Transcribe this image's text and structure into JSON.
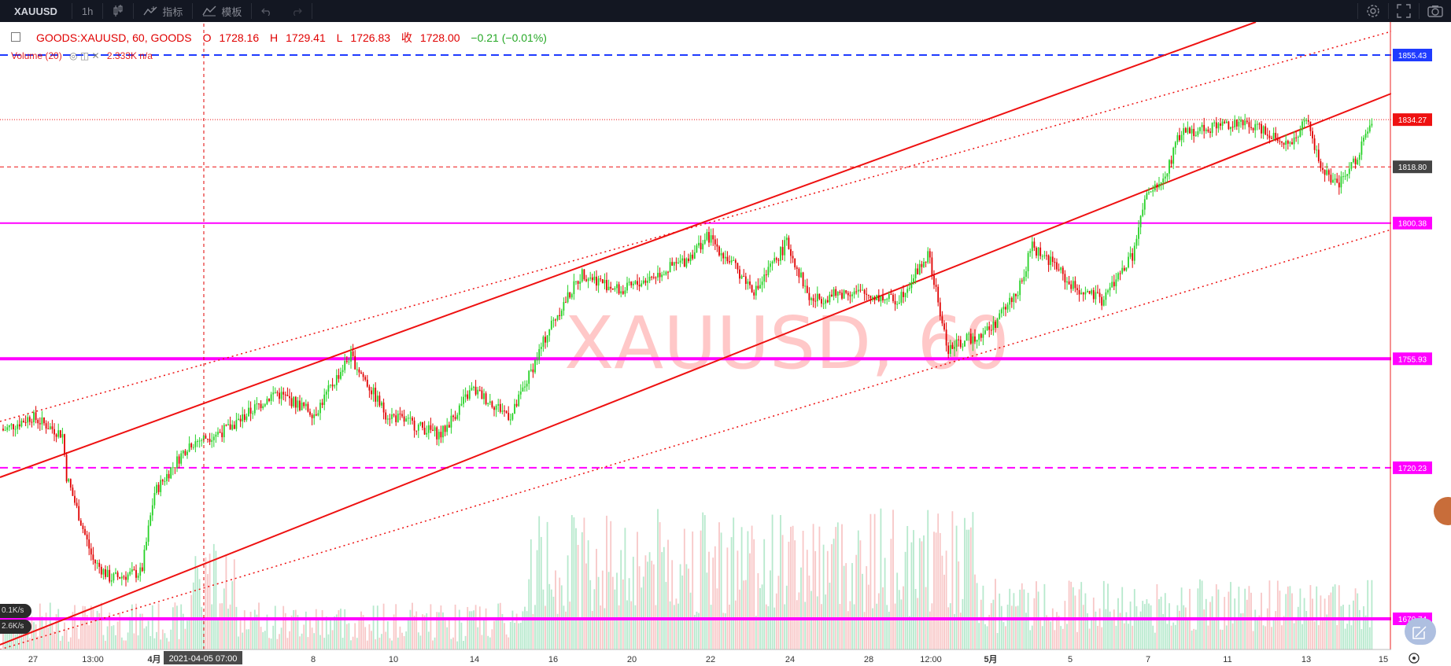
{
  "toolbar": {
    "symbol": "XAUUSD",
    "interval": "1h",
    "indicators_label": "指标",
    "templates_label": "模板"
  },
  "legend": {
    "symbol": "GOODS:XAUUSD, 60, GOODS",
    "o_key": "O",
    "o_val": "1728.16",
    "h_key": "H",
    "h_val": "1729.41",
    "l_key": "L",
    "l_val": "1726.83",
    "c_key": "收",
    "c_val": "1728.00",
    "change": "−0.21 (−0.01%)",
    "volume": "Volume (20)",
    "volume_val": "2.333K  n/a"
  },
  "watermark": "XAUUSD, 60",
  "net": {
    "down": "0.1K/s",
    "up": "2.6K/s"
  },
  "price_labels": [
    {
      "value": "1855.43",
      "color": "#1f3bff"
    },
    {
      "value": "1834.27",
      "color": "#ee1111"
    },
    {
      "value": "1818.80",
      "color": "#444444"
    },
    {
      "value": "1800.38",
      "color": "#ff00ff"
    },
    {
      "value": "1755.93",
      "color": "#ff00ff"
    },
    {
      "value": "1720.23",
      "color": "#ff00ff"
    },
    {
      "value": "1670.74",
      "color": "#ff00ff"
    }
  ],
  "x_labels": [
    "27",
    "13:00",
    "4月",
    "2021-04-05  07:00",
    "8",
    "10",
    "14",
    "16",
    "20",
    "22",
    "24",
    "28",
    "12:00",
    "5月",
    "5",
    "7",
    "11",
    "13",
    "15"
  ],
  "chart_data": {
    "type": "candlestick",
    "symbol": "XAUUSD",
    "interval": "60",
    "price_range": [
      1660,
      1870
    ],
    "close_path": [
      [
        "27",
        1733
      ],
      [
        "13:00",
        1684
      ],
      [
        "4月",
        1728
      ],
      [
        "8",
        1745
      ],
      [
        "10",
        1737
      ],
      [
        "14",
        1741
      ],
      [
        "16",
        1774
      ],
      [
        "20",
        1782
      ],
      [
        "22",
        1792
      ],
      [
        "24",
        1779
      ],
      [
        "28",
        1772
      ],
      [
        "12:00",
        1768
      ],
      [
        "5月",
        1776
      ],
      [
        "5",
        1786
      ],
      [
        "7",
        1812
      ],
      [
        "11",
        1836
      ],
      [
        "13",
        1822
      ],
      [
        "15",
        1830
      ]
    ],
    "horizontal_levels": [
      1855.43,
      1834.27,
      1818.8,
      1800.38,
      1755.93,
      1720.23,
      1670.74
    ],
    "current_price": 1834.27
  }
}
